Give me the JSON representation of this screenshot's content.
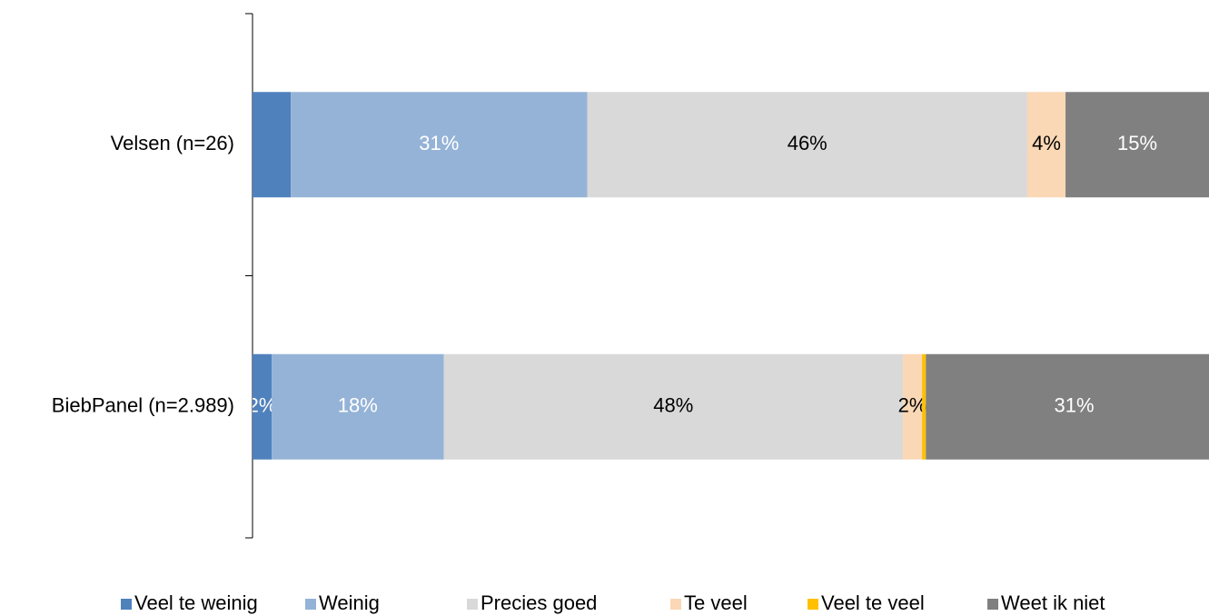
{
  "chart_data": {
    "type": "stacked_barh",
    "categories": [
      "Velsen (n=26)",
      "BiebPanel (n=2.989)"
    ],
    "xlim": [
      0,
      100
    ],
    "legend": "bottom",
    "series": [
      {
        "name": "Veel te weinig",
        "color": "#4f81bd",
        "label_color": "#ffffff",
        "values": [
          4,
          2
        ],
        "value_labels": [
          null,
          "2%"
        ]
      },
      {
        "name": "Weinig",
        "color": "#95b3d7",
        "label_color": "#ffffff",
        "values": [
          31,
          18
        ],
        "value_labels": [
          "31%",
          "18%"
        ]
      },
      {
        "name": "Precies goed",
        "color": "#d9d9d9",
        "label_color": "#000000",
        "values": [
          46,
          48
        ],
        "value_labels": [
          "46%",
          "48%"
        ]
      },
      {
        "name": "Te veel",
        "color": "#fad7b5",
        "label_color": "#000000",
        "values": [
          4,
          2
        ],
        "value_labels": [
          "4%",
          "2%"
        ]
      },
      {
        "name": "Veel te veel",
        "color": "#ffc000",
        "label_color": "#000000",
        "values": [
          0,
          0.4
        ],
        "value_labels": [
          null,
          null
        ]
      },
      {
        "name": "Weet ik niet",
        "color": "#808080",
        "label_color": "#ffffff",
        "values": [
          15,
          31
        ],
        "value_labels": [
          "15%",
          "31%"
        ]
      }
    ]
  }
}
